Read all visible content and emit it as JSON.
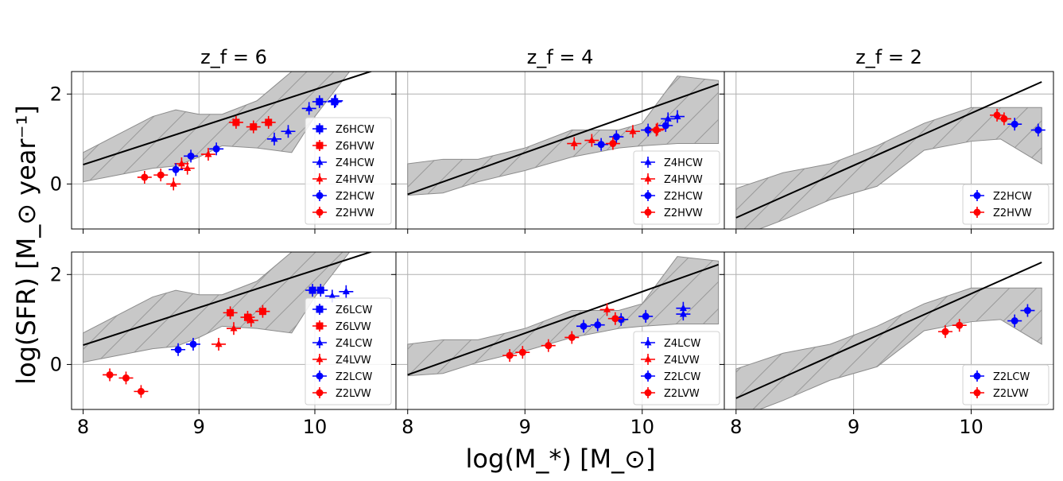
{
  "figure": {
    "xlabel": "log(M_*) [M_⊙]",
    "ylabel": "log(SFR) [M_⊙ year⁻¹]",
    "colors": {
      "blue": "#0000ff",
      "red": "#ff0000",
      "line": "#000000",
      "band": "#c8c8c8",
      "grid": "#b0b0b0"
    }
  },
  "chart_data": [
    {
      "type": "scatter",
      "panel": "top-left",
      "title": "z_f = 6",
      "xlim": [
        7.9,
        10.7
      ],
      "ylim": [
        -1,
        2.5
      ],
      "xticks": [
        8,
        9,
        10
      ],
      "yticks": [
        0,
        2
      ],
      "grid": true,
      "legend_position": "lower right",
      "relation_line": {
        "x": [
          8.0,
          10.6
        ],
        "y": [
          0.43,
          2.6
        ]
      },
      "band": {
        "x": [
          8.0,
          8.3,
          8.6,
          8.8,
          9.0,
          9.2,
          9.5,
          9.8,
          10.0,
          10.3,
          10.6
        ],
        "upper": [
          0.7,
          1.1,
          1.5,
          1.65,
          1.55,
          1.55,
          1.85,
          2.5,
          2.6,
          2.6,
          2.6
        ],
        "lower": [
          0.05,
          0.2,
          0.35,
          0.4,
          0.6,
          0.85,
          0.8,
          0.7,
          1.5,
          2.5,
          2.6
        ]
      },
      "legend": [
        "Z6HCW",
        "Z6HVW",
        "Z4HCW",
        "Z4HVW",
        "Z2HCW",
        "Z2HVW"
      ],
      "series": [
        {
          "name": "Z6HCW",
          "color": "blue",
          "marker": "square",
          "points": [
            [
              10.04,
              1.83
            ],
            [
              10.17,
              1.83
            ]
          ]
        },
        {
          "name": "Z6HVW",
          "color": "red",
          "marker": "square",
          "points": [
            [
              9.32,
              1.37
            ],
            [
              9.47,
              1.27
            ],
            [
              9.6,
              1.37
            ]
          ]
        },
        {
          "name": "Z4HCW",
          "color": "blue",
          "marker": "triangle",
          "points": [
            [
              9.65,
              1.0
            ],
            [
              9.77,
              1.17
            ],
            [
              9.95,
              1.68
            ],
            [
              10.18,
              1.85
            ]
          ]
        },
        {
          "name": "Z4HVW",
          "color": "red",
          "marker": "triangle",
          "points": [
            [
              8.78,
              0.0
            ],
            [
              8.85,
              0.45
            ],
            [
              8.9,
              0.35
            ],
            [
              9.08,
              0.66
            ]
          ]
        },
        {
          "name": "Z2HCW",
          "color": "blue",
          "marker": "circle",
          "points": [
            [
              8.8,
              0.32
            ],
            [
              8.93,
              0.62
            ],
            [
              9.15,
              0.78
            ]
          ]
        },
        {
          "name": "Z2HVW",
          "color": "red",
          "marker": "circle",
          "points": [
            [
              8.53,
              0.15
            ],
            [
              8.67,
              0.2
            ]
          ]
        }
      ]
    },
    {
      "type": "scatter",
      "panel": "top-middle",
      "title": "z_f = 4",
      "xlim": [
        7.9,
        10.7
      ],
      "ylim": [
        -1,
        2.5
      ],
      "xticks": [
        8,
        9,
        10
      ],
      "yticks": [
        0,
        2
      ],
      "grid": true,
      "legend_position": "lower right",
      "relation_line": {
        "x": [
          8.0,
          10.65
        ],
        "y": [
          -0.23,
          2.22
        ]
      },
      "band": {
        "x": [
          8.0,
          8.3,
          8.6,
          9.0,
          9.4,
          9.8,
          10.0,
          10.3,
          10.65
        ],
        "upper": [
          0.45,
          0.55,
          0.55,
          0.8,
          1.2,
          1.2,
          1.35,
          2.4,
          2.3
        ],
        "lower": [
          -0.25,
          -0.2,
          0.05,
          0.3,
          0.6,
          0.8,
          0.85,
          0.9,
          0.9
        ]
      },
      "legend": [
        "Z4HCW",
        "Z4HVW",
        "Z2HCW",
        "Z2HVW"
      ],
      "series": [
        {
          "name": "Z4HCW",
          "color": "blue",
          "marker": "triangle",
          "points": [
            [
              10.22,
              1.45
            ],
            [
              10.3,
              1.5
            ]
          ]
        },
        {
          "name": "Z4HVW",
          "color": "red",
          "marker": "triangle",
          "points": [
            [
              9.42,
              0.9
            ],
            [
              9.57,
              0.97
            ],
            [
              9.92,
              1.17
            ],
            [
              10.13,
              1.22
            ]
          ]
        },
        {
          "name": "Z2HCW",
          "color": "blue",
          "marker": "circle",
          "points": [
            [
              9.65,
              0.88
            ],
            [
              9.78,
              1.05
            ],
            [
              10.05,
              1.2
            ],
            [
              10.2,
              1.3
            ]
          ]
        },
        {
          "name": "Z2HVW",
          "color": "red",
          "marker": "circle",
          "points": [
            [
              9.75,
              0.9
            ],
            [
              10.12,
              1.2
            ]
          ]
        }
      ]
    },
    {
      "type": "scatter",
      "panel": "top-right",
      "title": "z_f = 2",
      "xlim": [
        7.9,
        10.7
      ],
      "ylim": [
        -1,
        2.5
      ],
      "xticks": [
        8,
        9,
        10
      ],
      "yticks": [
        0,
        2
      ],
      "grid": true,
      "legend_position": "lower right",
      "relation_line": {
        "x": [
          8.0,
          10.6
        ],
        "y": [
          -0.75,
          2.27
        ]
      },
      "band": {
        "x": [
          8.0,
          8.4,
          8.8,
          9.2,
          9.6,
          10.0,
          10.25,
          10.6
        ],
        "upper": [
          -0.1,
          0.25,
          0.45,
          0.85,
          1.35,
          1.7,
          1.7,
          1.7
        ],
        "lower": [
          -1.2,
          -0.8,
          -0.35,
          -0.05,
          0.75,
          0.95,
          1.0,
          0.45
        ]
      },
      "legend": [
        "Z2HCW",
        "Z2HVW"
      ],
      "series": [
        {
          "name": "Z2HCW",
          "color": "blue",
          "marker": "circle",
          "points": [
            [
              10.37,
              1.33
            ],
            [
              10.57,
              1.2
            ]
          ]
        },
        {
          "name": "Z2HVW",
          "color": "red",
          "marker": "circle",
          "points": [
            [
              10.22,
              1.53
            ],
            [
              10.28,
              1.45
            ]
          ]
        }
      ]
    },
    {
      "type": "scatter",
      "panel": "bottom-left",
      "title": "",
      "xlim": [
        7.9,
        10.7
      ],
      "ylim": [
        -1,
        2.5
      ],
      "xticks": [
        8,
        9,
        10
      ],
      "yticks": [
        0,
        2
      ],
      "grid": true,
      "legend_position": "lower right",
      "relation_line": {
        "x": [
          8.0,
          10.6
        ],
        "y": [
          0.43,
          2.6
        ]
      },
      "band": {
        "x": [
          8.0,
          8.3,
          8.6,
          8.8,
          9.0,
          9.2,
          9.5,
          9.8,
          10.0,
          10.3,
          10.6
        ],
        "upper": [
          0.7,
          1.1,
          1.5,
          1.65,
          1.55,
          1.55,
          1.85,
          2.5,
          2.6,
          2.6,
          2.6
        ],
        "lower": [
          0.05,
          0.2,
          0.35,
          0.4,
          0.6,
          0.85,
          0.8,
          0.7,
          1.5,
          2.5,
          2.6
        ]
      },
      "legend": [
        "Z6LCW",
        "Z6LVW",
        "Z4LCW",
        "Z4LVW",
        "Z2LCW",
        "Z2LVW"
      ],
      "series": [
        {
          "name": "Z6LCW",
          "color": "blue",
          "marker": "square",
          "points": [
            [
              9.98,
              1.65
            ],
            [
              10.05,
              1.65
            ]
          ]
        },
        {
          "name": "Z6LVW",
          "color": "red",
          "marker": "square",
          "points": [
            [
              9.27,
              1.15
            ],
            [
              9.42,
              1.05
            ],
            [
              9.55,
              1.18
            ]
          ]
        },
        {
          "name": "Z4LCW",
          "color": "blue",
          "marker": "triangle",
          "points": [
            [
              10.15,
              1.52
            ],
            [
              10.27,
              1.62
            ]
          ]
        },
        {
          "name": "Z4LVW",
          "color": "red",
          "marker": "triangle",
          "points": [
            [
              9.17,
              0.45
            ],
            [
              9.3,
              0.8
            ],
            [
              9.45,
              0.98
            ]
          ]
        },
        {
          "name": "Z2LCW",
          "color": "blue",
          "marker": "circle",
          "points": [
            [
              8.82,
              0.33
            ],
            [
              8.95,
              0.45
            ]
          ]
        },
        {
          "name": "Z2LVW",
          "color": "red",
          "marker": "circle",
          "points": [
            [
              8.23,
              -0.23
            ],
            [
              8.37,
              -0.3
            ],
            [
              8.5,
              -0.6
            ]
          ]
        }
      ]
    },
    {
      "type": "scatter",
      "panel": "bottom-middle",
      "title": "",
      "xlim": [
        7.9,
        10.7
      ],
      "ylim": [
        -1,
        2.5
      ],
      "xticks": [
        8,
        9,
        10
      ],
      "yticks": [
        0,
        2
      ],
      "grid": true,
      "legend_position": "lower right",
      "relation_line": {
        "x": [
          8.0,
          10.65
        ],
        "y": [
          -0.23,
          2.22
        ]
      },
      "band": {
        "x": [
          8.0,
          8.3,
          8.6,
          9.0,
          9.4,
          9.8,
          10.0,
          10.3,
          10.65
        ],
        "upper": [
          0.45,
          0.55,
          0.55,
          0.8,
          1.2,
          1.2,
          1.35,
          2.4,
          2.3
        ],
        "lower": [
          -0.25,
          -0.2,
          0.05,
          0.3,
          0.6,
          0.8,
          0.85,
          0.9,
          0.9
        ]
      },
      "legend": [
        "Z4LCW",
        "Z4LVW",
        "Z2LCW",
        "Z2LVW"
      ],
      "series": [
        {
          "name": "Z4LCW",
          "color": "blue",
          "marker": "triangle",
          "points": [
            [
              10.35,
              1.25
            ],
            [
              10.35,
              1.12
            ]
          ]
        },
        {
          "name": "Z4LVW",
          "color": "red",
          "marker": "triangle",
          "points": [
            [
              9.7,
              1.22
            ]
          ]
        },
        {
          "name": "Z2LCW",
          "color": "blue",
          "marker": "circle",
          "points": [
            [
              9.5,
              0.85
            ],
            [
              9.62,
              0.88
            ],
            [
              9.82,
              1.0
            ],
            [
              10.03,
              1.07
            ]
          ]
        },
        {
          "name": "Z2LVW",
          "color": "red",
          "marker": "circle",
          "points": [
            [
              8.87,
              0.2
            ],
            [
              8.98,
              0.27
            ],
            [
              9.2,
              0.42
            ],
            [
              9.4,
              0.6
            ],
            [
              9.77,
              1.02
            ]
          ]
        }
      ]
    },
    {
      "type": "scatter",
      "panel": "bottom-right",
      "title": "",
      "xlim": [
        7.9,
        10.7
      ],
      "ylim": [
        -1,
        2.5
      ],
      "xticks": [
        8,
        9,
        10
      ],
      "yticks": [
        0,
        2
      ],
      "grid": true,
      "legend_position": "lower right",
      "relation_line": {
        "x": [
          8.0,
          10.6
        ],
        "y": [
          -0.75,
          2.27
        ]
      },
      "band": {
        "x": [
          8.0,
          8.4,
          8.8,
          9.2,
          9.6,
          10.0,
          10.25,
          10.6
        ],
        "upper": [
          -0.1,
          0.25,
          0.45,
          0.85,
          1.35,
          1.7,
          1.7,
          1.7
        ],
        "lower": [
          -1.2,
          -0.8,
          -0.35,
          -0.05,
          0.75,
          0.95,
          1.0,
          0.45
        ]
      },
      "legend": [
        "Z2LCW",
        "Z2LVW"
      ],
      "series": [
        {
          "name": "Z2LCW",
          "color": "blue",
          "marker": "circle",
          "points": [
            [
              10.37,
              0.97
            ],
            [
              10.48,
              1.2
            ]
          ]
        },
        {
          "name": "Z2LVW",
          "color": "red",
          "marker": "circle",
          "points": [
            [
              9.78,
              0.73
            ],
            [
              9.9,
              0.87
            ]
          ]
        }
      ]
    }
  ]
}
